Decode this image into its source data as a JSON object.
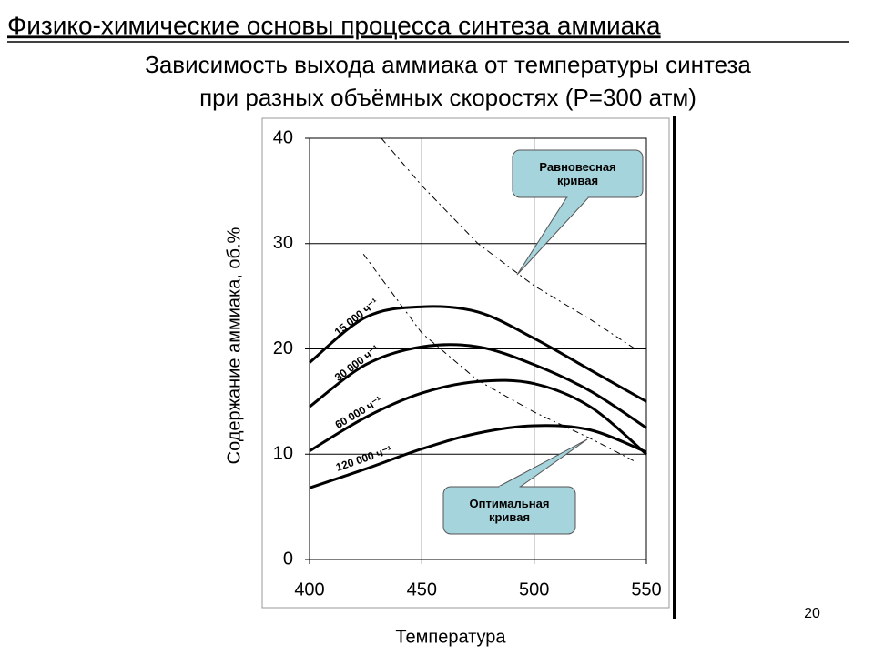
{
  "header": {
    "title": "Физико-химические основы процесса синтеза аммиака",
    "subtitle": [
      "Зависимость выхода аммиака от температуры синтеза",
      "при разных объёмных скоростях (P=300 атм)"
    ]
  },
  "page_number": "20",
  "chart_data": {
    "type": "line",
    "x_label": "Температура",
    "y_label": "Содержание аммиака, об.%",
    "x": [
      400,
      425,
      450,
      475,
      500,
      525,
      550
    ],
    "series": [
      {
        "name": "15 000 ч⁻¹",
        "color": "#000000",
        "values": [
          18.7,
          23,
          24,
          23.5,
          21,
          18,
          15
        ]
      },
      {
        "name": "30 000 ч⁻¹",
        "color": "#000000",
        "values": [
          14.5,
          18.5,
          20.2,
          20.2,
          18.5,
          16,
          12.5
        ]
      },
      {
        "name": "60 000 ч⁻¹",
        "color": "#000000",
        "values": [
          10.3,
          13.5,
          15.8,
          16.9,
          16.7,
          14.5,
          10
        ]
      },
      {
        "name": "120 000 ч⁻¹",
        "color": "#000000",
        "values": [
          6.8,
          8.6,
          10.5,
          12,
          12.7,
          12.3,
          10.2
        ]
      },
      {
        "name": "Равновесная кривая",
        "color": "#000000",
        "dash": true,
        "x": [
          432,
          450,
          475,
          500,
          525,
          545
        ],
        "values": [
          40,
          35.5,
          30,
          26,
          22.8,
          20
        ]
      },
      {
        "name": "Оптимальная кривая",
        "color": "#000000",
        "dash": true,
        "x": [
          424,
          450,
          475,
          500,
          525,
          545
        ],
        "values": [
          29,
          21.5,
          17,
          14,
          11.5,
          9.3
        ]
      }
    ],
    "xlim": [
      400,
      550
    ],
    "xticks": [
      400,
      450,
      500,
      550
    ],
    "ylim": [
      0,
      40
    ],
    "yticks": [
      0,
      10,
      20,
      30,
      40
    ],
    "grid": true
  }
}
